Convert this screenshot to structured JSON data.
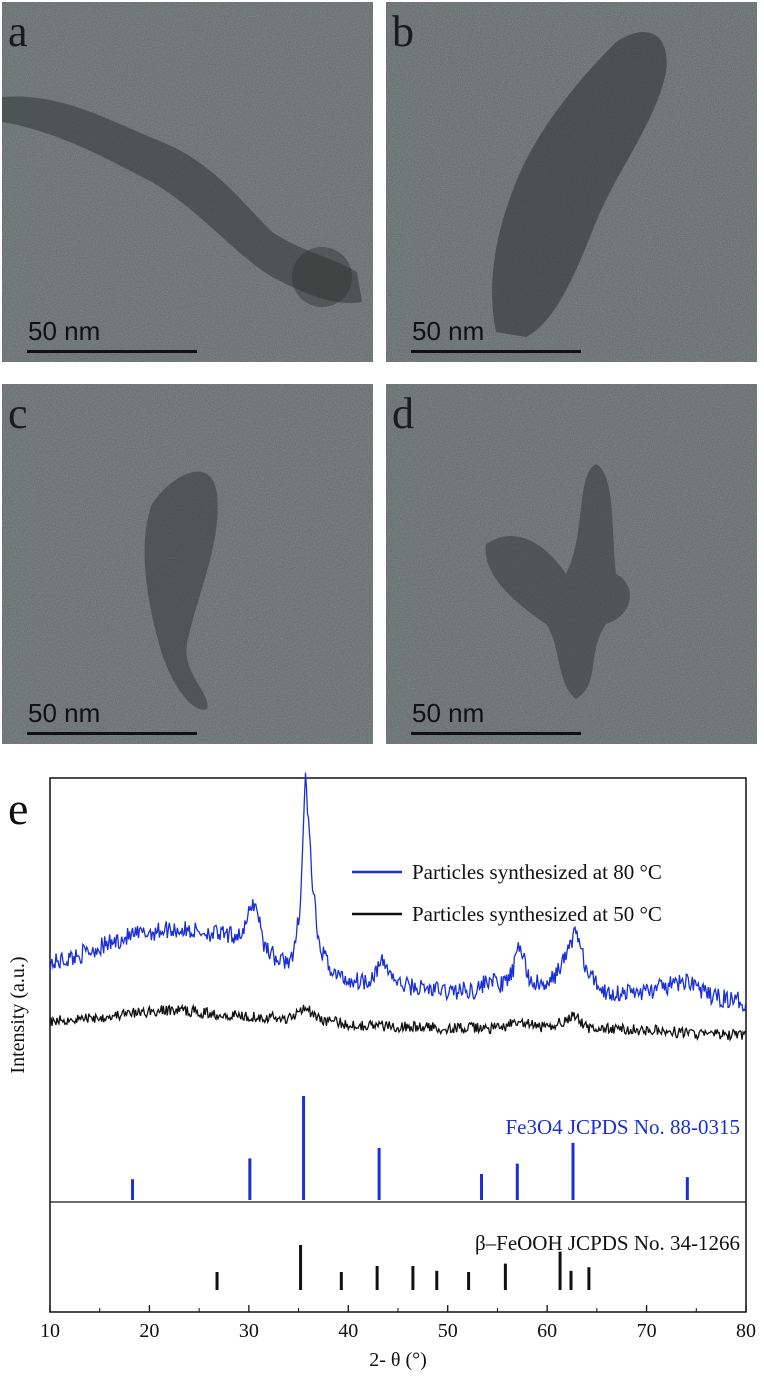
{
  "panels": [
    {
      "letter": "a",
      "scale_label": "50 nm"
    },
    {
      "letter": "b",
      "scale_label": "50 nm"
    },
    {
      "letter": "c",
      "scale_label": "50 nm"
    },
    {
      "letter": "d",
      "scale_label": "50 nm"
    }
  ],
  "chart_panel_letter": "e",
  "colors": {
    "blue": "#1a2fd6",
    "black": "#111111",
    "tem_bg": "#5a6160"
  },
  "chart_data": {
    "type": "line",
    "xlabel": "2- θ (°)",
    "ylabel": "Intensity (a.u.)",
    "xlim": [
      10,
      80
    ],
    "xticks": [
      10,
      20,
      30,
      40,
      50,
      60,
      70,
      80
    ],
    "legend_position": "top-right",
    "series": [
      {
        "name": "Particles synthesized at 80 °C",
        "color": "#1a2fd6",
        "x": [
          10,
          12,
          14,
          16,
          18,
          20,
          22,
          24,
          26,
          28,
          29.5,
          30.3,
          30.8,
          31.5,
          33,
          34.5,
          35.2,
          35.7,
          36.3,
          37,
          38.5,
          40,
          42,
          43.5,
          45,
          47,
          50,
          53,
          54.2,
          55.5,
          56.5,
          57.3,
          58.2,
          60,
          61.8,
          62.9,
          64,
          66,
          70,
          74.5,
          76,
          80
        ],
        "y": [
          0.55,
          0.58,
          0.62,
          0.66,
          0.7,
          0.72,
          0.74,
          0.73,
          0.72,
          0.7,
          0.72,
          0.88,
          0.86,
          0.66,
          0.56,
          0.58,
          0.9,
          1.58,
          1.05,
          0.65,
          0.5,
          0.46,
          0.46,
          0.56,
          0.44,
          0.42,
          0.4,
          0.41,
          0.47,
          0.43,
          0.5,
          0.66,
          0.46,
          0.42,
          0.58,
          0.74,
          0.5,
          0.39,
          0.4,
          0.46,
          0.38,
          0.34
        ]
      },
      {
        "name": "Particles synthesized at 50 °C",
        "color": "#111111",
        "x": [
          10,
          15,
          20,
          23,
          26,
          29,
          32,
          34,
          35.6,
          37,
          40,
          45,
          50,
          55,
          57,
          60,
          62.8,
          64,
          70,
          75,
          80
        ],
        "y": [
          0.24,
          0.26,
          0.29,
          0.3,
          0.28,
          0.27,
          0.26,
          0.25,
          0.32,
          0.25,
          0.22,
          0.21,
          0.2,
          0.2,
          0.23,
          0.2,
          0.27,
          0.2,
          0.19,
          0.17,
          0.16
        ]
      }
    ],
    "reference_patterns": [
      {
        "label": "Fe3O4 JCPDS No. 88-0315",
        "color": "#1a2fd6",
        "positions": [
          18.3,
          30.1,
          35.5,
          43.1,
          53.4,
          57.0,
          62.6,
          74.1
        ],
        "intensities": [
          0.2,
          0.4,
          1.0,
          0.5,
          0.25,
          0.35,
          0.55,
          0.22
        ]
      },
      {
        "label": "β–FeOOH JCPDS No. 34-1266",
        "color": "#111111",
        "positions": [
          26.8,
          35.2,
          39.3,
          42.9,
          46.5,
          48.9,
          52.1,
          55.8,
          61.3,
          62.4,
          64.2
        ],
        "intensities": [
          0.3,
          0.75,
          0.3,
          0.4,
          0.4,
          0.32,
          0.3,
          0.44,
          0.64,
          0.32,
          0.38
        ]
      }
    ]
  }
}
